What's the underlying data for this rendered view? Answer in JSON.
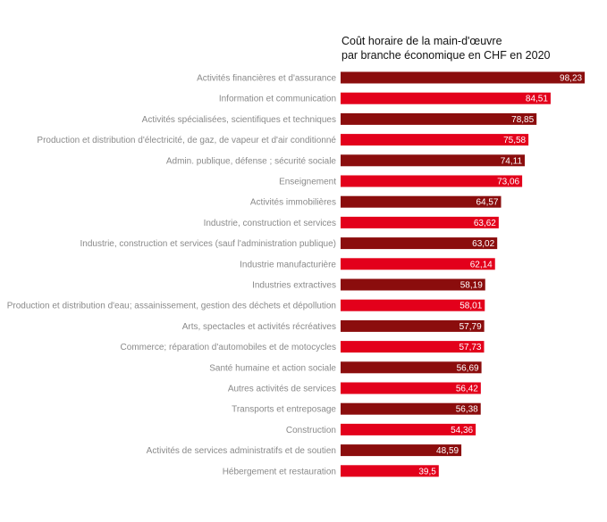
{
  "chart_data": {
    "type": "bar",
    "orientation": "horizontal",
    "title_lines": [
      "Coût horaire de la main-d'œuvre",
      "par branche économique en CHF en 2020"
    ],
    "categories": [
      "Activités financières et d'assurance",
      "Information et communication",
      "Activités spécialisées, scientifiques et techniques",
      "Production et distribution d'électricité, de gaz, de vapeur et d'air conditionné",
      "Admin. publique, défense ; sécurité sociale",
      "Enseignement",
      "Activités immobilières",
      "Industrie, construction et services",
      "Industrie, construction et services (sauf l'administration publique)",
      "Industrie manufacturière",
      "Industries extractives",
      "Production et distribution d'eau; assainissement, gestion des déchets et dépollution",
      "Arts, spectacles et activités récréatives",
      "Commerce; réparation d'automobiles et de motocycles",
      "Santé humaine et action sociale",
      "Autres activités de services",
      "Transports et entreposage",
      "Construction",
      "Activités de services administratifs et de soutien",
      "Hébergement et restauration"
    ],
    "values": [
      98.23,
      84.51,
      78.85,
      75.58,
      74.11,
      73.06,
      64.57,
      63.62,
      63.02,
      62.14,
      58.19,
      58.01,
      57.79,
      57.73,
      56.69,
      56.42,
      56.38,
      54.36,
      48.59,
      39.5
    ],
    "value_labels": [
      "98,23",
      "84,51",
      "78,85",
      "75,58",
      "74,11",
      "73,06",
      "64,57",
      "63,62",
      "63,02",
      "62,14",
      "58,19",
      "58,01",
      "57,79",
      "57,73",
      "56,69",
      "56,42",
      "56,38",
      "54,36",
      "48,59",
      "39,5"
    ],
    "bar_colors": [
      "#8b0d0d",
      "#e3001b"
    ],
    "xlim": [
      0,
      100
    ],
    "grid": false,
    "legend": "none"
  }
}
